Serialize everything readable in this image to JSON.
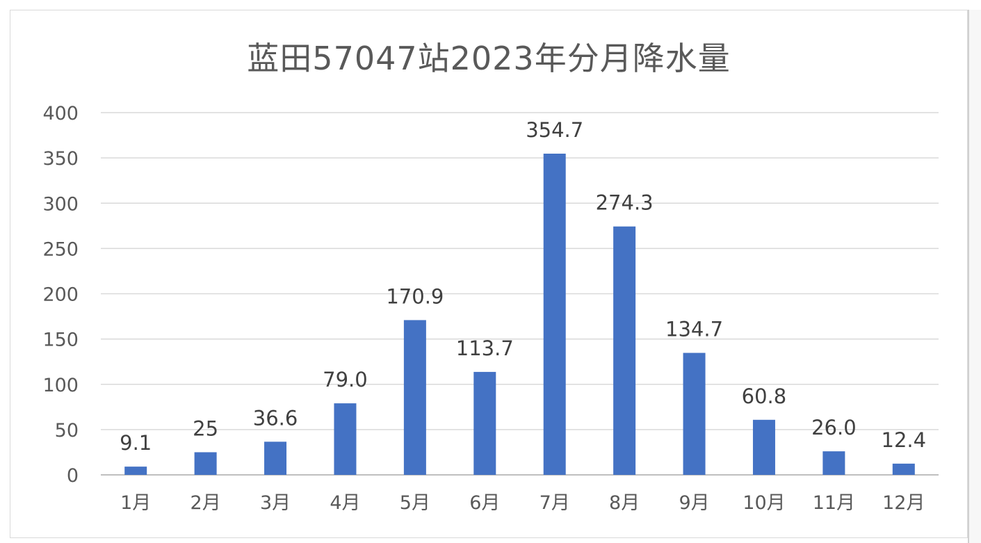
{
  "chart_data": {
    "type": "bar",
    "title": "蓝田57047站2023年分月降水量",
    "categories": [
      "1月",
      "2月",
      "3月",
      "4月",
      "5月",
      "6月",
      "7月",
      "8月",
      "9月",
      "10月",
      "11月",
      "12月"
    ],
    "values": [
      9.1,
      25,
      36.6,
      79.0,
      170.9,
      113.7,
      354.7,
      274.3,
      134.7,
      60.8,
      26.0,
      12.4
    ],
    "data_labels": [
      "9.1",
      "25",
      "36.6",
      "79.0",
      "170.9",
      "113.7",
      "354.7",
      "274.3",
      "134.7",
      "60.8",
      "26.0",
      "12.4"
    ],
    "yticks": [
      "0",
      "50",
      "100",
      "150",
      "200",
      "250",
      "300",
      "350",
      "400"
    ],
    "ylim": [
      0,
      400
    ],
    "xlabel": "",
    "ylabel": "",
    "grid": true,
    "legend": "none",
    "bar_color": "#4472C4"
  }
}
